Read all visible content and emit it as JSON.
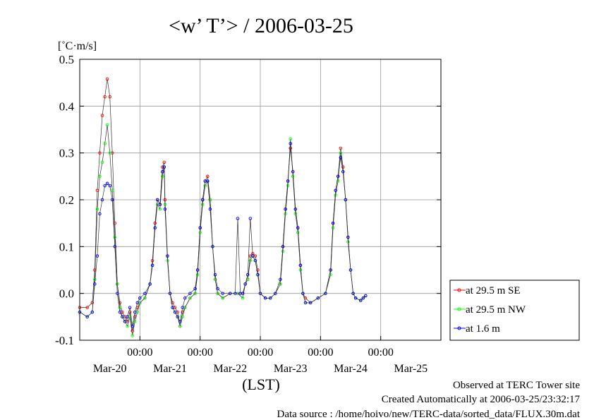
{
  "chart_data": {
    "type": "line",
    "title": "<w’ T’> / 2006-03-25",
    "ylabel": "[˚C·m/s]",
    "xlabel": "(LST)",
    "ylim": [
      -0.1,
      0.5
    ],
    "yticks": [
      "0.5",
      "0.4",
      "0.3",
      "0.2",
      "0.1",
      "0.0",
      "-0.1"
    ],
    "xlim": [
      0,
      144
    ],
    "time_ticks": [
      "00:00",
      "00:00",
      "00:00",
      "00:00",
      "00:00"
    ],
    "date_ticks": [
      "Mar-20",
      "Mar-21",
      "Mar-22",
      "Mar-23",
      "Mar-24",
      "Mar-25"
    ],
    "grid": true,
    "legend_position": "right",
    "series": [
      {
        "name": "at 29.5 m SE",
        "color": "#ff0000",
        "points": [
          [
            0,
            -0.03
          ],
          [
            3,
            -0.03
          ],
          [
            5,
            -0.02
          ],
          [
            6,
            0.05
          ],
          [
            7,
            0.22
          ],
          [
            8,
            0.3
          ],
          [
            9,
            0.38
          ],
          [
            10,
            0.42
          ],
          [
            11,
            0.458
          ],
          [
            12,
            0.42
          ],
          [
            13,
            0.3
          ],
          [
            14,
            0.15
          ],
          [
            15,
            0.02
          ],
          [
            16,
            -0.02
          ],
          [
            17,
            -0.04
          ],
          [
            18,
            -0.05
          ],
          [
            19,
            -0.06
          ],
          [
            20,
            -0.04
          ],
          [
            21,
            -0.08
          ],
          [
            22,
            -0.05
          ],
          [
            23,
            -0.03
          ],
          [
            24,
            -0.02
          ],
          [
            26,
            -0.01
          ],
          [
            28,
            0.02
          ],
          [
            29,
            0.07
          ],
          [
            30,
            0.15
          ],
          [
            31,
            0.2
          ],
          [
            32,
            0.19
          ],
          [
            33,
            0.27
          ],
          [
            33.7,
            0.28
          ],
          [
            34,
            0.2
          ],
          [
            35,
            0.08
          ],
          [
            36,
            0.0
          ],
          [
            37,
            -0.02
          ],
          [
            38,
            -0.03
          ],
          [
            39,
            -0.04
          ],
          [
            40,
            -0.07
          ],
          [
            41,
            -0.04
          ],
          [
            42,
            -0.03
          ],
          [
            44,
            -0.01
          ],
          [
            46,
            0.0
          ],
          [
            47,
            0.05
          ],
          [
            48,
            0.14
          ],
          [
            49,
            0.2
          ],
          [
            50,
            0.24
          ],
          [
            51,
            0.25
          ],
          [
            52,
            0.2
          ],
          [
            53,
            0.1
          ],
          [
            54,
            0.03
          ],
          [
            55,
            0.0
          ],
          [
            57,
            -0.01
          ],
          [
            60,
            0.0
          ],
          [
            63,
            0.0
          ],
          [
            65,
            0.0
          ],
          [
            66,
            0.02
          ],
          [
            67,
            0.03
          ],
          [
            68,
            0.08
          ],
          [
            69,
            0.085
          ],
          [
            70,
            0.08
          ],
          [
            71,
            0.05
          ],
          [
            72,
            0.0
          ],
          [
            74,
            -0.01
          ],
          [
            76,
            -0.01
          ],
          [
            78,
            0.0
          ],
          [
            80,
            0.02
          ],
          [
            81,
            0.1
          ],
          [
            82,
            0.18
          ],
          [
            83,
            0.24
          ],
          [
            84,
            0.31
          ],
          [
            85,
            0.26
          ],
          [
            86,
            0.18
          ],
          [
            87,
            0.14
          ],
          [
            88,
            0.06
          ],
          [
            89,
            0.0
          ],
          [
            90,
            -0.01
          ],
          [
            92,
            -0.02
          ],
          [
            95,
            -0.01
          ],
          [
            98,
            0.0
          ],
          [
            100,
            0.05
          ],
          [
            101,
            0.15
          ],
          [
            102,
            0.22
          ],
          [
            103,
            0.25
          ],
          [
            104,
            0.31
          ],
          [
            105,
            0.27
          ],
          [
            106,
            0.2
          ],
          [
            107,
            0.12
          ],
          [
            108,
            0.05
          ],
          [
            109,
            0.0
          ],
          [
            110,
            -0.01
          ],
          [
            112,
            -0.015
          ],
          [
            113,
            -0.01
          ],
          [
            114,
            -0.005
          ]
        ]
      },
      {
        "name": "at 29.5 m NW",
        "color": "#00ff00",
        "points": [
          [
            0,
            -0.04
          ],
          [
            3,
            -0.05
          ],
          [
            5,
            -0.04
          ],
          [
            6,
            0.03
          ],
          [
            7,
            0.18
          ],
          [
            8,
            0.25
          ],
          [
            9,
            0.28
          ],
          [
            10,
            0.32
          ],
          [
            11,
            0.36
          ],
          [
            12,
            0.3
          ],
          [
            13,
            0.22
          ],
          [
            14,
            0.12
          ],
          [
            15,
            0.02
          ],
          [
            16,
            -0.03
          ],
          [
            17,
            -0.05
          ],
          [
            18,
            -0.06
          ],
          [
            19,
            -0.07
          ],
          [
            20,
            -0.05
          ],
          [
            21,
            -0.09
          ],
          [
            22,
            -0.06
          ],
          [
            23,
            -0.04
          ],
          [
            24,
            -0.02
          ],
          [
            26,
            -0.01
          ],
          [
            28,
            0.02
          ],
          [
            29,
            0.06
          ],
          [
            30,
            0.14
          ],
          [
            31,
            0.19
          ],
          [
            32,
            0.18
          ],
          [
            33,
            0.25
          ],
          [
            33.7,
            0.27
          ],
          [
            34,
            0.19
          ],
          [
            35,
            0.07
          ],
          [
            36,
            0.0
          ],
          [
            37,
            -0.03
          ],
          [
            38,
            -0.04
          ],
          [
            39,
            -0.05
          ],
          [
            40,
            -0.07
          ],
          [
            41,
            -0.05
          ],
          [
            42,
            -0.03
          ],
          [
            44,
            -0.01
          ],
          [
            46,
            0.0
          ],
          [
            47,
            0.04
          ],
          [
            48,
            0.13
          ],
          [
            49,
            0.19
          ],
          [
            50,
            0.23
          ],
          [
            51,
            0.24
          ],
          [
            52,
            0.2
          ],
          [
            53,
            0.1
          ],
          [
            54,
            0.03
          ],
          [
            55,
            0.0
          ],
          [
            57,
            -0.01
          ],
          [
            60,
            0.0
          ],
          [
            63,
            0.0
          ],
          [
            65,
            -0.01
          ],
          [
            66,
            0.02
          ],
          [
            67,
            0.03
          ],
          [
            68,
            0.07
          ],
          [
            69,
            0.08
          ],
          [
            70,
            0.07
          ],
          [
            71,
            0.04
          ],
          [
            72,
            0.0
          ],
          [
            74,
            -0.01
          ],
          [
            76,
            -0.01
          ],
          [
            78,
            0.0
          ],
          [
            80,
            0.02
          ],
          [
            81,
            0.09
          ],
          [
            82,
            0.17
          ],
          [
            83,
            0.23
          ],
          [
            84,
            0.33
          ],
          [
            85,
            0.25
          ],
          [
            86,
            0.17
          ],
          [
            87,
            0.13
          ],
          [
            88,
            0.05
          ],
          [
            89,
            0.0
          ],
          [
            90,
            -0.02
          ],
          [
            92,
            -0.02
          ],
          [
            95,
            -0.01
          ],
          [
            98,
            0.0
          ],
          [
            100,
            0.04
          ],
          [
            101,
            0.14
          ],
          [
            102,
            0.21
          ],
          [
            103,
            0.24
          ],
          [
            104,
            0.3
          ],
          [
            105,
            0.26
          ],
          [
            106,
            0.2
          ],
          [
            107,
            0.11
          ],
          [
            108,
            0.05
          ],
          [
            109,
            0.0
          ],
          [
            110,
            -0.01
          ],
          [
            112,
            -0.015
          ],
          [
            113,
            -0.01
          ],
          [
            114,
            -0.005
          ]
        ]
      },
      {
        "name": "at 1.6 m",
        "color": "#0000ff",
        "points": [
          [
            0,
            -0.04
          ],
          [
            3,
            -0.05
          ],
          [
            5,
            -0.04
          ],
          [
            6,
            0.02
          ],
          [
            7,
            0.08
          ],
          [
            8,
            0.17
          ],
          [
            9,
            0.2
          ],
          [
            10,
            0.23
          ],
          [
            11,
            0.235
          ],
          [
            12,
            0.23
          ],
          [
            13,
            0.2
          ],
          [
            14,
            0.1
          ],
          [
            15,
            0.0
          ],
          [
            16,
            -0.04
          ],
          [
            17,
            -0.05
          ],
          [
            18,
            -0.06
          ],
          [
            19,
            -0.05
          ],
          [
            20,
            -0.03
          ],
          [
            21,
            -0.07
          ],
          [
            22,
            -0.04
          ],
          [
            23,
            -0.02
          ],
          [
            24,
            -0.01
          ],
          [
            26,
            0.0
          ],
          [
            28,
            0.02
          ],
          [
            29,
            0.06
          ],
          [
            30,
            0.14
          ],
          [
            31,
            0.2
          ],
          [
            32,
            0.19
          ],
          [
            33,
            0.26
          ],
          [
            33.7,
            0.27
          ],
          [
            34,
            0.18
          ],
          [
            35,
            0.08
          ],
          [
            36,
            0.0
          ],
          [
            37,
            -0.03
          ],
          [
            38,
            -0.04
          ],
          [
            39,
            -0.05
          ],
          [
            40,
            -0.06
          ],
          [
            41,
            -0.03
          ],
          [
            42,
            -0.01
          ],
          [
            44,
            0.0
          ],
          [
            46,
            0.01
          ],
          [
            47,
            0.05
          ],
          [
            48,
            0.14
          ],
          [
            49,
            0.2
          ],
          [
            50,
            0.24
          ],
          [
            51,
            0.24
          ],
          [
            52,
            0.18
          ],
          [
            53,
            0.1
          ],
          [
            54,
            0.04
          ],
          [
            55,
            0.01
          ],
          [
            57,
            0.0
          ],
          [
            60,
            0.0
          ],
          [
            62,
            0.0
          ],
          [
            63,
            0.16
          ],
          [
            64,
            0.0
          ],
          [
            65,
            0.0
          ],
          [
            66,
            0.02
          ],
          [
            67,
            0.04
          ],
          [
            68,
            0.16
          ],
          [
            69,
            0.08
          ],
          [
            70,
            0.07
          ],
          [
            71,
            0.04
          ],
          [
            72,
            0.0
          ],
          [
            74,
            -0.01
          ],
          [
            76,
            -0.01
          ],
          [
            78,
            0.0
          ],
          [
            80,
            0.03
          ],
          [
            81,
            0.1
          ],
          [
            82,
            0.18
          ],
          [
            83,
            0.24
          ],
          [
            84,
            0.32
          ],
          [
            85,
            0.26
          ],
          [
            86,
            0.18
          ],
          [
            87,
            0.14
          ],
          [
            88,
            0.06
          ],
          [
            89,
            0.0
          ],
          [
            90,
            -0.02
          ],
          [
            92,
            -0.02
          ],
          [
            95,
            -0.01
          ],
          [
            98,
            0.0
          ],
          [
            100,
            0.05
          ],
          [
            101,
            0.15
          ],
          [
            102,
            0.22
          ],
          [
            103,
            0.25
          ],
          [
            104,
            0.29
          ],
          [
            105,
            0.26
          ],
          [
            106,
            0.2
          ],
          [
            107,
            0.12
          ],
          [
            108,
            0.05
          ],
          [
            109,
            0.0
          ],
          [
            110,
            -0.01
          ],
          [
            112,
            -0.015
          ],
          [
            113,
            -0.01
          ],
          [
            114,
            -0.005
          ]
        ]
      }
    ]
  },
  "footer": {
    "line1": "Observed at TERC Tower site",
    "line2": "Created Automatically at 2006-03-25/23:32:17",
    "line3": "Data source : /home/hoivo/new/TERC-data/sorted_data/FLUX.30m.dat"
  }
}
